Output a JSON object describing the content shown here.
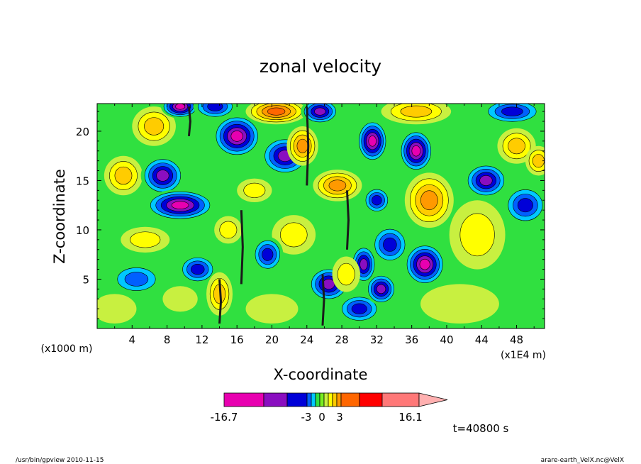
{
  "chart_data": {
    "type": "heatmap",
    "title": "zonal velocity",
    "xlabel": "X-coordinate",
    "ylabel": "Z-coordinate",
    "x_unit": "(x1E4 m)",
    "y_unit": "(x1000 m)",
    "x_ticks": [
      "4",
      "8",
      "12",
      "16",
      "20",
      "24",
      "28",
      "32",
      "36",
      "40",
      "44",
      "48"
    ],
    "x_tick_values": [
      4,
      8,
      12,
      16,
      20,
      24,
      28,
      32,
      36,
      40,
      44,
      48
    ],
    "y_ticks": [
      "5",
      "10",
      "15",
      "20"
    ],
    "y_tick_values": [
      5,
      10,
      15,
      20
    ],
    "xlim": [
      0,
      51.2
    ],
    "ylim": [
      0,
      22.8
    ],
    "colorbar": {
      "labels": [
        {
          "text": "-16.7",
          "value": -16.7
        },
        {
          "text": "-3",
          "value": -3
        },
        {
          "text": "0",
          "value": 0
        },
        {
          "text": "3",
          "value": 3
        },
        {
          "text": "16.1",
          "value": 16.1
        }
      ],
      "colors": [
        "#e800b0",
        "#8a0ec0",
        "#0000d8",
        "#0060ff",
        "#00c8ff",
        "#30e040",
        "#78ee20",
        "#c8f040",
        "#ffff00",
        "#ffcc00",
        "#ff9900",
        "#ff6600",
        "#ff0000",
        "#ff7878",
        "#ffb0b0"
      ],
      "extend": "max"
    },
    "time_label": "t=40800 s",
    "blobs": [
      {
        "x": 3,
        "z": 15.5,
        "rx": 2.2,
        "rz": 2.0,
        "v": 8
      },
      {
        "x": 6.5,
        "z": 20.5,
        "rx": 2.5,
        "rz": 2.0,
        "v": 7
      },
      {
        "x": 7.5,
        "z": 15.5,
        "rx": 2.5,
        "rz": 2.0,
        "v": -7
      },
      {
        "x": 9.5,
        "z": 22.5,
        "rx": 2.2,
        "rz": 1.2,
        "v": -12
      },
      {
        "x": 13.5,
        "z": 22.5,
        "rx": 2.5,
        "rz": 1.3,
        "v": -6
      },
      {
        "x": 9.5,
        "z": 12.5,
        "rx": 4.0,
        "rz": 1.6,
        "v": -9
      },
      {
        "x": 16.0,
        "z": 19.5,
        "rx": 2.8,
        "rz": 2.2,
        "v": -9
      },
      {
        "x": 20.5,
        "z": 22.0,
        "rx": 3.5,
        "rz": 1.3,
        "v": 10
      },
      {
        "x": 21.5,
        "z": 17.5,
        "rx": 2.8,
        "rz": 2.0,
        "v": -7
      },
      {
        "x": 23.5,
        "z": 18.5,
        "rx": 1.8,
        "rz": 2.0,
        "v": 9
      },
      {
        "x": 25.5,
        "z": 22.0,
        "rx": 2.2,
        "rz": 1.3,
        "v": -8
      },
      {
        "x": 27.5,
        "z": 14.5,
        "rx": 2.8,
        "rz": 1.6,
        "v": 9
      },
      {
        "x": 31.5,
        "z": 19.0,
        "rx": 1.8,
        "rz": 2.2,
        "v": -9
      },
      {
        "x": 36.5,
        "z": 22.0,
        "rx": 4.0,
        "rz": 1.3,
        "v": 8
      },
      {
        "x": 36.5,
        "z": 18.0,
        "rx": 2.0,
        "rz": 2.2,
        "v": -9
      },
      {
        "x": 38.0,
        "z": 13.0,
        "rx": 2.8,
        "rz": 2.8,
        "v": 9
      },
      {
        "x": 44.5,
        "z": 15.0,
        "rx": 2.5,
        "rz": 1.8,
        "v": -8
      },
      {
        "x": 47.5,
        "z": 22.0,
        "rx": 3.5,
        "rz": 1.3,
        "v": -6
      },
      {
        "x": 48.0,
        "z": 18.5,
        "rx": 2.2,
        "rz": 1.8,
        "v": 7
      },
      {
        "x": 50.5,
        "z": 17.0,
        "rx": 1.5,
        "rz": 1.5,
        "v": 7
      },
      {
        "x": 49.0,
        "z": 12.5,
        "rx": 2.5,
        "rz": 2.0,
        "v": -5
      },
      {
        "x": 43.5,
        "z": 9.5,
        "rx": 3.2,
        "rz": 3.5,
        "v": 6
      },
      {
        "x": 37.5,
        "z": 6.5,
        "rx": 2.4,
        "rz": 2.2,
        "v": -10
      },
      {
        "x": 33.5,
        "z": 8.5,
        "rx": 2.2,
        "rz": 2.0,
        "v": -6
      },
      {
        "x": 30.5,
        "z": 6.5,
        "rx": 1.5,
        "rz": 2.0,
        "v": -8
      },
      {
        "x": 26.5,
        "z": 4.5,
        "rx": 2.4,
        "rz": 1.8,
        "v": -8
      },
      {
        "x": 28.5,
        "z": 5.5,
        "rx": 1.6,
        "rz": 1.8,
        "v": 5
      },
      {
        "x": 22.5,
        "z": 9.5,
        "rx": 2.5,
        "rz": 2.0,
        "v": 5
      },
      {
        "x": 19.5,
        "z": 7.5,
        "rx": 1.8,
        "rz": 1.8,
        "v": -5
      },
      {
        "x": 5.5,
        "z": 9.0,
        "rx": 2.8,
        "rz": 1.3,
        "v": 5
      },
      {
        "x": 4.5,
        "z": 5.0,
        "rx": 3.0,
        "rz": 1.6,
        "v": -4
      },
      {
        "x": 11.5,
        "z": 6.0,
        "rx": 2.2,
        "rz": 1.5,
        "v": -6
      },
      {
        "x": 14.0,
        "z": 3.5,
        "rx": 1.5,
        "rz": 2.2,
        "v": 7
      },
      {
        "x": 30.0,
        "z": 2.0,
        "rx": 2.5,
        "rz": 1.5,
        "v": -6
      },
      {
        "x": 32.5,
        "z": 4.0,
        "rx": 1.8,
        "rz": 1.6,
        "v": -7
      },
      {
        "x": 41.5,
        "z": 2.5,
        "rx": 4.5,
        "rz": 2.0,
        "v": 3
      },
      {
        "x": 15.0,
        "z": 10.0,
        "rx": 1.6,
        "rz": 1.4,
        "v": 6
      },
      {
        "x": 18.0,
        "z": 14.0,
        "rx": 2.0,
        "rz": 1.2,
        "v": 5
      },
      {
        "x": 32.0,
        "z": 13.0,
        "rx": 1.6,
        "rz": 1.4,
        "v": -5
      },
      {
        "x": 2.0,
        "z": 2.0,
        "rx": 2.5,
        "rz": 1.5,
        "v": 4
      },
      {
        "x": 20.0,
        "z": 2.0,
        "rx": 3.0,
        "rz": 1.5,
        "v": 4
      },
      {
        "x": 9.5,
        "z": 3.0,
        "rx": 2.0,
        "rz": 1.3,
        "v": 3
      }
    ],
    "ridges": [
      {
        "x": 14.0,
        "z0": 0.5,
        "z1": 5.0
      },
      {
        "x": 25.8,
        "z0": 0.3,
        "z1": 5.5
      },
      {
        "x": 16.5,
        "z0": 4.5,
        "z1": 12.0
      },
      {
        "x": 28.6,
        "z0": 8.0,
        "z1": 14.0
      },
      {
        "x": 24.0,
        "z0": 14.5,
        "z1": 22.5
      },
      {
        "x": 10.5,
        "z0": 19.5,
        "z1": 22.5
      }
    ]
  },
  "footer": {
    "left": "/usr/bin/gpview   2010-11-15",
    "right": "arare-earth_VelX.nc@VelX"
  }
}
